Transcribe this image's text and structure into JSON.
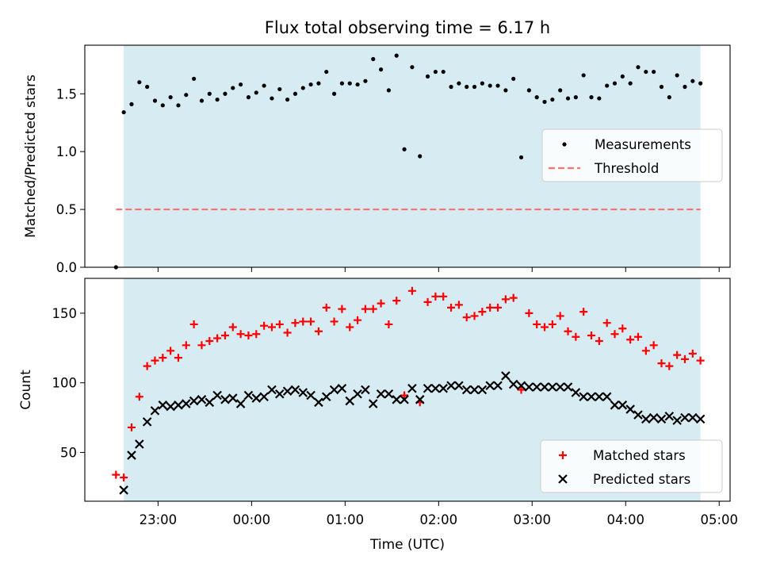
{
  "figure": {
    "title": "Flux total observing time = 6.17 h",
    "shaded_color": "#add8e6"
  },
  "chart_data": [
    {
      "type": "scatter",
      "ylabel": "Matched/Predicted stars",
      "ylim": [
        0,
        1.92
      ],
      "yticks": [
        "0.0",
        "0.5",
        "1.0",
        "1.5"
      ],
      "ytick_values": [
        0,
        0.5,
        1.0,
        1.5
      ],
      "shaded_range": [
        "22:38",
        "04:48"
      ],
      "legend": {
        "placement": "center-right",
        "entries": [
          "Measurements",
          "Threshold"
        ]
      },
      "threshold": {
        "name": "Threshold",
        "y": 0.5,
        "x_range": [
          "22:33",
          "04:48"
        ],
        "color": "#ff7070"
      },
      "series": [
        {
          "name": "Measurements",
          "color": "#000000",
          "points": [
            [
              "22:33",
              0.0
            ],
            [
              "22:38",
              1.34
            ],
            [
              "22:43",
              1.41
            ],
            [
              "22:48",
              1.6
            ],
            [
              "22:53",
              1.56
            ],
            [
              "22:58",
              1.44
            ],
            [
              "23:03",
              1.4
            ],
            [
              "23:08",
              1.47
            ],
            [
              "23:13",
              1.4
            ],
            [
              "23:18",
              1.49
            ],
            [
              "23:23",
              1.63
            ],
            [
              "23:28",
              1.44
            ],
            [
              "23:33",
              1.5
            ],
            [
              "23:38",
              1.45
            ],
            [
              "23:43",
              1.5
            ],
            [
              "23:48",
              1.55
            ],
            [
              "23:53",
              1.58
            ],
            [
              "23:58",
              1.47
            ],
            [
              "00:03",
              1.51
            ],
            [
              "00:08",
              1.57
            ],
            [
              "00:13",
              1.46
            ],
            [
              "00:18",
              1.54
            ],
            [
              "00:23",
              1.45
            ],
            [
              "00:28",
              1.5
            ],
            [
              "00:33",
              1.55
            ],
            [
              "00:38",
              1.58
            ],
            [
              "00:43",
              1.59
            ],
            [
              "00:48",
              1.69
            ],
            [
              "00:53",
              1.5
            ],
            [
              "00:58",
              1.59
            ],
            [
              "01:03",
              1.59
            ],
            [
              "01:08",
              1.58
            ],
            [
              "01:13",
              1.61
            ],
            [
              "01:18",
              1.8
            ],
            [
              "01:23",
              1.71
            ],
            [
              "01:28",
              1.53
            ],
            [
              "01:33",
              1.83
            ],
            [
              "01:38",
              1.02
            ],
            [
              "01:43",
              1.73
            ],
            [
              "01:48",
              0.96
            ],
            [
              "01:53",
              1.65
            ],
            [
              "01:58",
              1.69
            ],
            [
              "02:03",
              1.69
            ],
            [
              "02:08",
              1.56
            ],
            [
              "02:13",
              1.59
            ],
            [
              "02:18",
              1.56
            ],
            [
              "02:23",
              1.56
            ],
            [
              "02:28",
              1.59
            ],
            [
              "02:33",
              1.57
            ],
            [
              "02:38",
              1.57
            ],
            [
              "02:43",
              1.53
            ],
            [
              "02:48",
              1.63
            ],
            [
              "02:53",
              0.95
            ],
            [
              "02:58",
              1.53
            ],
            [
              "03:03",
              1.47
            ],
            [
              "03:08",
              1.43
            ],
            [
              "03:13",
              1.45
            ],
            [
              "03:18",
              1.53
            ],
            [
              "03:23",
              1.46
            ],
            [
              "03:28",
              1.47
            ],
            [
              "03:33",
              1.66
            ],
            [
              "03:38",
              1.47
            ],
            [
              "03:43",
              1.46
            ],
            [
              "03:48",
              1.57
            ],
            [
              "03:53",
              1.59
            ],
            [
              "03:58",
              1.65
            ],
            [
              "04:03",
              1.59
            ],
            [
              "04:08",
              1.73
            ],
            [
              "04:13",
              1.69
            ],
            [
              "04:18",
              1.69
            ],
            [
              "04:23",
              1.56
            ],
            [
              "04:28",
              1.47
            ],
            [
              "04:33",
              1.66
            ],
            [
              "04:38",
              1.56
            ],
            [
              "04:43",
              1.61
            ],
            [
              "04:48",
              1.59
            ]
          ]
        }
      ]
    },
    {
      "type": "scatter",
      "xlabel": "Time (UTC)",
      "ylabel": "Count",
      "ylim": [
        15,
        175
      ],
      "yticks": [
        "50",
        "100",
        "150"
      ],
      "ytick_values": [
        50,
        100,
        150
      ],
      "xlim": [
        "22:13",
        "05:07"
      ],
      "xticks": [
        "23:00",
        "00:00",
        "01:00",
        "02:00",
        "03:00",
        "04:00",
        "05:00"
      ],
      "shaded_range": [
        "22:38",
        "04:48"
      ],
      "legend": {
        "placement": "lower-right",
        "entries": [
          "Matched stars",
          "Predicted stars"
        ]
      },
      "series": [
        {
          "name": "Matched stars",
          "color": "#ff0000",
          "points": [
            [
              "22:33",
              34
            ],
            [
              "22:38",
              32
            ],
            [
              "22:43",
              68
            ],
            [
              "22:48",
              90
            ],
            [
              "22:53",
              112
            ],
            [
              "22:58",
              116
            ],
            [
              "23:03",
              118
            ],
            [
              "23:08",
              123
            ],
            [
              "23:13",
              118
            ],
            [
              "23:18",
              127
            ],
            [
              "23:23",
              142
            ],
            [
              "23:28",
              127
            ],
            [
              "23:33",
              130
            ],
            [
              "23:38",
              132
            ],
            [
              "23:43",
              134
            ],
            [
              "23:48",
              140
            ],
            [
              "23:53",
              135
            ],
            [
              "23:58",
              134
            ],
            [
              "00:03",
              135
            ],
            [
              "00:08",
              141
            ],
            [
              "00:13",
              140
            ],
            [
              "00:18",
              142
            ],
            [
              "00:23",
              136
            ],
            [
              "00:28",
              143
            ],
            [
              "00:33",
              144
            ],
            [
              "00:38",
              144
            ],
            [
              "00:43",
              137
            ],
            [
              "00:48",
              154
            ],
            [
              "00:53",
              144
            ],
            [
              "00:58",
              153
            ],
            [
              "01:03",
              140
            ],
            [
              "01:08",
              145
            ],
            [
              "01:13",
              153
            ],
            [
              "01:18",
              153
            ],
            [
              "01:23",
              157
            ],
            [
              "01:28",
              142
            ],
            [
              "01:33",
              159
            ],
            [
              "01:38",
              91
            ],
            [
              "01:43",
              166
            ],
            [
              "01:48",
              86
            ],
            [
              "01:53",
              158
            ],
            [
              "01:58",
              162
            ],
            [
              "02:03",
              162
            ],
            [
              "02:08",
              154
            ],
            [
              "02:13",
              156
            ],
            [
              "02:18",
              147
            ],
            [
              "02:23",
              148
            ],
            [
              "02:28",
              151
            ],
            [
              "02:33",
              154
            ],
            [
              "02:38",
              154
            ],
            [
              "02:43",
              160
            ],
            [
              "02:48",
              161
            ],
            [
              "02:53",
              95
            ],
            [
              "02:58",
              150
            ],
            [
              "03:03",
              142
            ],
            [
              "03:08",
              140
            ],
            [
              "03:13",
              142
            ],
            [
              "03:18",
              148
            ],
            [
              "03:23",
              137
            ],
            [
              "03:28",
              133
            ],
            [
              "03:33",
              151
            ],
            [
              "03:38",
              134
            ],
            [
              "03:43",
              130
            ],
            [
              "03:48",
              143
            ],
            [
              "03:53",
              135
            ],
            [
              "03:58",
              139
            ],
            [
              "04:03",
              131
            ],
            [
              "04:08",
              133
            ],
            [
              "04:13",
              123
            ],
            [
              "04:18",
              127
            ],
            [
              "04:23",
              114
            ],
            [
              "04:28",
              112
            ],
            [
              "04:33",
              120
            ],
            [
              "04:38",
              117
            ],
            [
              "04:43",
              121
            ],
            [
              "04:48",
              116
            ]
          ]
        },
        {
          "name": "Predicted stars",
          "color": "#000000",
          "points": [
            [
              "22:38",
              23
            ],
            [
              "22:43",
              48
            ],
            [
              "22:48",
              56
            ],
            [
              "22:53",
              72
            ],
            [
              "22:58",
              80
            ],
            [
              "23:03",
              84
            ],
            [
              "23:08",
              83
            ],
            [
              "23:13",
              84
            ],
            [
              "23:18",
              85
            ],
            [
              "23:23",
              87
            ],
            [
              "23:28",
              88
            ],
            [
              "23:33",
              86
            ],
            [
              "23:38",
              91
            ],
            [
              "23:43",
              88
            ],
            [
              "23:48",
              89
            ],
            [
              "23:53",
              85
            ],
            [
              "23:58",
              91
            ],
            [
              "00:03",
              89
            ],
            [
              "00:08",
              90
            ],
            [
              "00:13",
              95
            ],
            [
              "00:18",
              92
            ],
            [
              "00:23",
              94
            ],
            [
              "00:28",
              95
            ],
            [
              "00:33",
              93
            ],
            [
              "00:38",
              91
            ],
            [
              "00:43",
              86
            ],
            [
              "00:48",
              90
            ],
            [
              "00:53",
              95
            ],
            [
              "00:58",
              96
            ],
            [
              "01:03",
              87
            ],
            [
              "01:08",
              92
            ],
            [
              "01:13",
              95
            ],
            [
              "01:18",
              85
            ],
            [
              "01:23",
              92
            ],
            [
              "01:28",
              92
            ],
            [
              "01:33",
              88
            ],
            [
              "01:38",
              88
            ],
            [
              "01:43",
              96
            ],
            [
              "01:48",
              88
            ],
            [
              "01:53",
              96
            ],
            [
              "01:58",
              96
            ],
            [
              "02:03",
              96
            ],
            [
              "02:08",
              98
            ],
            [
              "02:13",
              98
            ],
            [
              "02:18",
              95
            ],
            [
              "02:23",
              95
            ],
            [
              "02:28",
              95
            ],
            [
              "02:33",
              98
            ],
            [
              "02:38",
              98
            ],
            [
              "02:43",
              105
            ],
            [
              "02:48",
              99
            ],
            [
              "02:53",
              98
            ],
            [
              "02:58",
              97
            ],
            [
              "03:03",
              97
            ],
            [
              "03:08",
              97
            ],
            [
              "03:13",
              97
            ],
            [
              "03:18",
              97
            ],
            [
              "03:23",
              97
            ],
            [
              "03:28",
              93
            ],
            [
              "03:33",
              90
            ],
            [
              "03:38",
              90
            ],
            [
              "03:43",
              90
            ],
            [
              "03:48",
              90
            ],
            [
              "03:53",
              84
            ],
            [
              "03:58",
              84
            ],
            [
              "04:03",
              81
            ],
            [
              "04:08",
              77
            ],
            [
              "04:13",
              74
            ],
            [
              "04:18",
              75
            ],
            [
              "04:23",
              74
            ],
            [
              "04:28",
              76
            ],
            [
              "04:33",
              73
            ],
            [
              "04:38",
              75
            ],
            [
              "04:43",
              75
            ],
            [
              "04:48",
              74
            ]
          ]
        }
      ]
    }
  ]
}
